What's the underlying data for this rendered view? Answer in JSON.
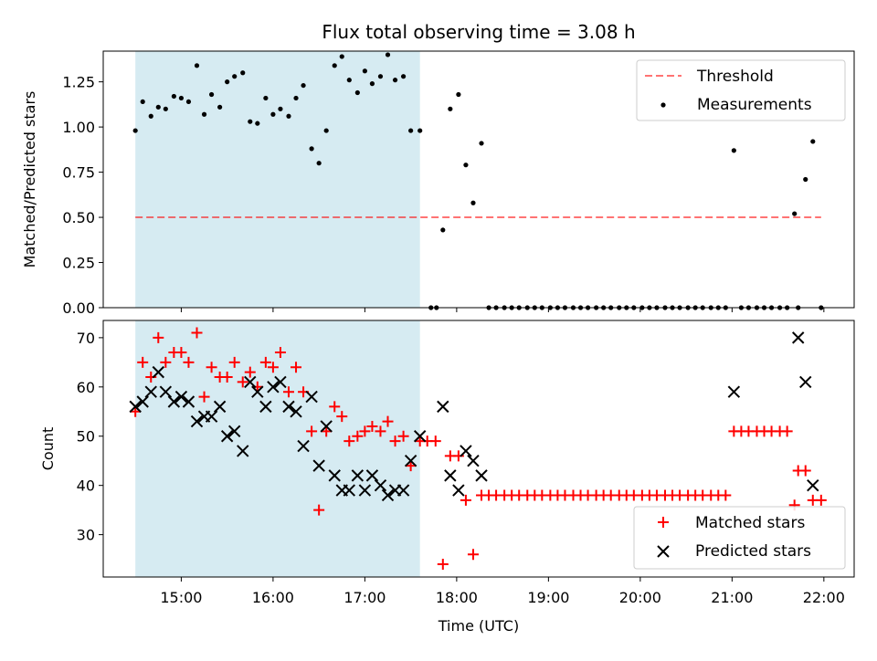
{
  "chart_data": {
    "title": "Flux total observing time = 3.08 h",
    "xlabel": "Time (UTC)",
    "x_ticks": [
      "15:00",
      "16:00",
      "17:00",
      "18:00",
      "19:00",
      "20:00",
      "21:00",
      "22:00"
    ],
    "x_tick_hours": [
      15,
      16,
      17,
      18,
      19,
      20,
      21,
      22
    ],
    "xlim_hours": [
      14.15,
      22.33
    ],
    "shaded_interval_hours": [
      14.5,
      17.6
    ],
    "colors": {
      "shade": "#add8e6",
      "threshold": "#ff0000",
      "matched": "#ff0000",
      "predicted": "#000000",
      "measurements": "#000000"
    },
    "panels": [
      {
        "type": "scatter",
        "ylabel": "Matched/Predicted stars",
        "ylim": [
          0,
          1.42
        ],
        "y_ticks": [
          "0.00",
          "0.25",
          "0.50",
          "0.75",
          "1.00",
          "1.25"
        ],
        "y_tick_values": [
          0,
          0.25,
          0.5,
          0.75,
          1.0,
          1.25
        ],
        "threshold": {
          "name": "Threshold",
          "value": 0.5,
          "x_range_hours": [
            14.5,
            21.97
          ]
        },
        "legend": {
          "position": "upper right",
          "entries": [
            "Threshold",
            "Measurements"
          ]
        },
        "series": [
          {
            "name": "Measurements",
            "marker": "dot",
            "x_hours": [
              14.5,
              14.58,
              14.67,
              14.75,
              14.83,
              14.92,
              15.0,
              15.08,
              15.17,
              15.25,
              15.33,
              15.42,
              15.5,
              15.58,
              15.67,
              15.75,
              15.83,
              15.92,
              16.0,
              16.08,
              16.17,
              16.25,
              16.33,
              16.42,
              16.5,
              16.58,
              16.67,
              16.75,
              16.83,
              16.92,
              17.0,
              17.08,
              17.17,
              17.25,
              17.33,
              17.42,
              17.5,
              17.6,
              17.72,
              17.78,
              17.85,
              17.93,
              18.02,
              18.1,
              18.18,
              18.27,
              18.35,
              18.43,
              18.52,
              18.6,
              18.68,
              18.77,
              18.85,
              18.93,
              19.02,
              19.1,
              19.18,
              19.27,
              19.35,
              19.43,
              19.52,
              19.6,
              19.68,
              19.77,
              19.85,
              19.93,
              20.02,
              20.1,
              20.18,
              20.27,
              20.35,
              20.43,
              20.52,
              20.6,
              20.68,
              20.77,
              20.85,
              20.93,
              21.02,
              21.1,
              21.18,
              21.27,
              21.35,
              21.43,
              21.52,
              21.6,
              21.68,
              21.72,
              21.8,
              21.88,
              21.97
            ],
            "values": [
              0.98,
              1.14,
              1.06,
              1.11,
              1.1,
              1.17,
              1.16,
              1.14,
              1.34,
              1.07,
              1.18,
              1.11,
              1.25,
              1.28,
              1.3,
              1.03,
              1.02,
              1.16,
              1.07,
              1.1,
              1.06,
              1.16,
              1.23,
              0.88,
              0.8,
              0.98,
              1.34,
              1.39,
              1.26,
              1.19,
              1.31,
              1.24,
              1.28,
              1.4,
              1.26,
              1.28,
              0.98,
              0.98,
              0,
              0,
              0.43,
              1.1,
              1.18,
              0.79,
              0.58,
              0.91,
              0,
              0,
              0,
              0,
              0,
              0,
              0,
              0,
              0,
              0,
              0,
              0,
              0,
              0,
              0,
              0,
              0,
              0,
              0,
              0,
              0,
              0,
              0,
              0,
              0,
              0,
              0,
              0,
              0,
              0,
              0,
              0,
              0.87,
              0,
              0,
              0,
              0,
              0,
              0,
              0,
              0.52,
              0,
              0.71,
              0.92,
              0
            ]
          }
        ]
      },
      {
        "type": "scatter",
        "ylabel": "Count",
        "ylim": [
          21.4,
          73.5
        ],
        "y_ticks": [
          "30",
          "40",
          "50",
          "60",
          "70"
        ],
        "y_tick_values": [
          30,
          40,
          50,
          60,
          70
        ],
        "legend": {
          "position": "lower right",
          "entries": [
            "Matched stars",
            "Predicted stars"
          ]
        },
        "series": [
          {
            "name": "Matched stars",
            "marker": "plus",
            "x_hours": [
              14.5,
              14.58,
              14.67,
              14.75,
              14.83,
              14.92,
              15.0,
              15.08,
              15.17,
              15.25,
              15.33,
              15.42,
              15.5,
              15.58,
              15.67,
              15.75,
              15.83,
              15.92,
              16.0,
              16.08,
              16.17,
              16.25,
              16.33,
              16.42,
              16.5,
              16.58,
              16.67,
              16.75,
              16.83,
              16.92,
              17.0,
              17.08,
              17.17,
              17.25,
              17.33,
              17.42,
              17.5,
              17.6,
              17.68,
              17.77,
              17.85,
              17.93,
              18.02,
              18.1,
              18.18,
              18.27,
              18.35,
              18.43,
              18.52,
              18.6,
              18.68,
              18.77,
              18.85,
              18.93,
              19.02,
              19.1,
              19.18,
              19.27,
              19.35,
              19.43,
              19.52,
              19.6,
              19.68,
              19.77,
              19.85,
              19.93,
              20.02,
              20.1,
              20.18,
              20.27,
              20.35,
              20.43,
              20.52,
              20.6,
              20.68,
              20.77,
              20.85,
              20.93,
              21.02,
              21.1,
              21.18,
              21.27,
              21.35,
              21.43,
              21.52,
              21.6,
              21.68,
              21.72,
              21.8,
              21.88,
              21.97
            ],
            "values": [
              55,
              65,
              62,
              70,
              65,
              67,
              67,
              65,
              71,
              58,
              64,
              62,
              62,
              65,
              61,
              63,
              60,
              65,
              64,
              67,
              59,
              64,
              59,
              51,
              35,
              51,
              56,
              54,
              49,
              50,
              51,
              52,
              51,
              53,
              49,
              50,
              44,
              49,
              49,
              49,
              24,
              46,
              46,
              37,
              26,
              38,
              38,
              38,
              38,
              38,
              38,
              38,
              38,
              38,
              38,
              38,
              38,
              38,
              38,
              38,
              38,
              38,
              38,
              38,
              38,
              38,
              38,
              38,
              38,
              38,
              38,
              38,
              38,
              38,
              38,
              38,
              38,
              38,
              51,
              51,
              51,
              51,
              51,
              51,
              51,
              51,
              36,
              43,
              43,
              37,
              37
            ]
          },
          {
            "name": "Predicted stars",
            "marker": "x",
            "x_hours": [
              14.5,
              14.58,
              14.67,
              14.75,
              14.83,
              14.92,
              15.0,
              15.08,
              15.17,
              15.25,
              15.33,
              15.42,
              15.5,
              15.58,
              15.67,
              15.75,
              15.83,
              15.92,
              16.0,
              16.08,
              16.17,
              16.25,
              16.33,
              16.42,
              16.5,
              16.58,
              16.67,
              16.75,
              16.83,
              16.92,
              17.0,
              17.08,
              17.17,
              17.25,
              17.33,
              17.42,
              17.5,
              17.6,
              17.85,
              17.93,
              18.02,
              18.1,
              18.18,
              18.27,
              21.02,
              21.72,
              21.8,
              21.88
            ],
            "values": [
              56,
              57,
              59,
              63,
              59,
              57,
              58,
              57,
              53,
              54,
              54,
              56,
              50,
              51,
              47,
              61,
              59,
              56,
              60,
              61,
              56,
              55,
              48,
              58,
              44,
              52,
              42,
              39,
              39,
              42,
              39,
              42,
              40,
              38,
              39,
              39,
              45,
              50,
              56,
              42,
              39,
              47,
              45,
              42,
              59,
              70,
              61,
              40
            ]
          }
        ]
      }
    ]
  }
}
